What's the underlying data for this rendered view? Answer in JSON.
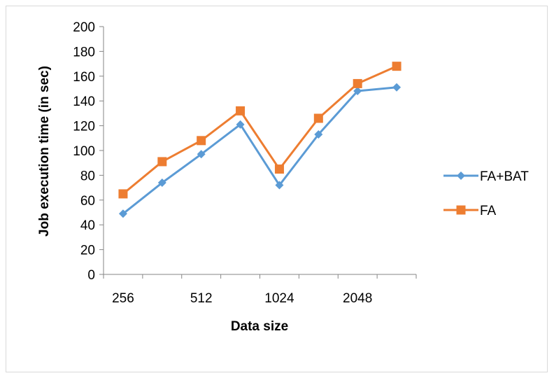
{
  "chart_data": {
    "type": "line",
    "title": "",
    "xlabel": "Data size",
    "ylabel": "Job execution time (in sec)",
    "categories": [
      "256",
      "",
      "512",
      "",
      "1024",
      "",
      "2048",
      ""
    ],
    "ylim": [
      0,
      200
    ],
    "yticks": [
      0,
      20,
      40,
      60,
      80,
      100,
      120,
      140,
      160,
      180,
      200
    ],
    "grid": false,
    "legend_position": "right",
    "series": [
      {
        "name": "FA+BAT",
        "color": "#5B9BD5",
        "marker": "diamond",
        "values": [
          49,
          74,
          97,
          121,
          72,
          113,
          148,
          151
        ]
      },
      {
        "name": "FA",
        "color": "#ED7D31",
        "marker": "square",
        "values": [
          65,
          91,
          108,
          132,
          85,
          126,
          154,
          168
        ]
      }
    ]
  }
}
